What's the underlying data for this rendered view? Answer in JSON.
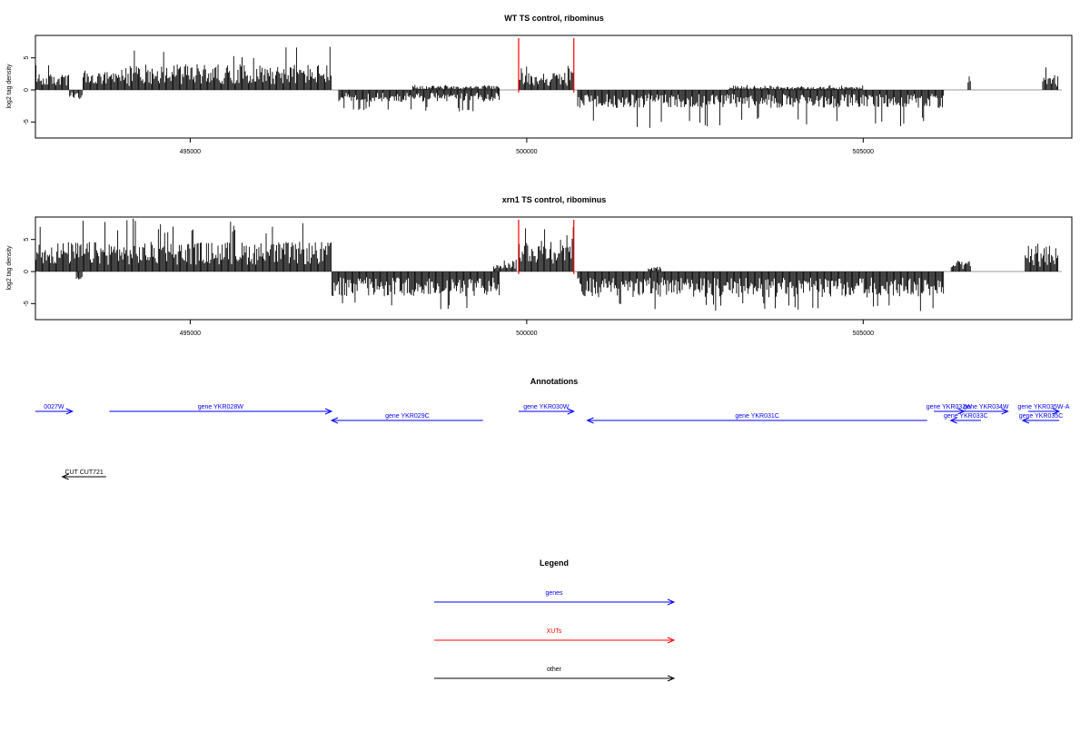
{
  "chart_data": [
    {
      "type": "bar",
      "title": "WT TS control, ribominus",
      "ylabel": "log2 tag density",
      "xlabel": "",
      "xlim": [
        492700,
        508100
      ],
      "ylim": [
        -7.5,
        8.5
      ],
      "yticks": [
        -5,
        0,
        5
      ],
      "ytick_labels": [
        "-5",
        "0",
        "5"
      ],
      "xticks": [
        495000,
        500000,
        505000
      ],
      "xtick_labels": [
        "495000",
        "500000",
        "505000"
      ],
      "highlight_lines": [
        499880,
        500700
      ],
      "highlight_color": "#ff0000",
      "bar_color": "#000000",
      "segments": [
        {
          "start": 492700,
          "end": 493200,
          "sign": 1,
          "level": 1.6,
          "peak": 4.5
        },
        {
          "start": 493200,
          "end": 493400,
          "sign": -1,
          "level": 0.8,
          "peak": 1.6
        },
        {
          "start": 493400,
          "end": 494100,
          "sign": 1,
          "level": 1.8,
          "peak": 3.5
        },
        {
          "start": 494100,
          "end": 497100,
          "sign": 1,
          "level": 2.6,
          "peak": 6.8
        },
        {
          "start": 497200,
          "end": 499600,
          "sign": -1,
          "level": 1.2,
          "peak": 3.5
        },
        {
          "start": 498300,
          "end": 499600,
          "sign": 1,
          "level": 0.4,
          "peak": 0.8
        },
        {
          "start": 499880,
          "end": 500700,
          "sign": 1,
          "level": 1.8,
          "peak": 3.8
        },
        {
          "start": 500750,
          "end": 506200,
          "sign": -1,
          "level": 1.8,
          "peak": 6.0
        },
        {
          "start": 503000,
          "end": 505000,
          "sign": 1,
          "level": 0.3,
          "peak": 0.8
        },
        {
          "start": 506550,
          "end": 506600,
          "sign": 1,
          "level": 1.5,
          "peak": 2.3
        },
        {
          "start": 507660,
          "end": 507900,
          "sign": 1,
          "level": 1.5,
          "peak": 4.3
        }
      ]
    },
    {
      "type": "bar",
      "title": "xrn1 TS control, ribominus",
      "ylabel": "log2 tag density",
      "xlabel": "",
      "xlim": [
        492700,
        508100
      ],
      "ylim": [
        -7.5,
        8.5
      ],
      "yticks": [
        -5,
        0,
        5
      ],
      "ytick_labels": [
        "-5",
        "0",
        "5"
      ],
      "xticks": [
        495000,
        500000,
        505000
      ],
      "xtick_labels": [
        "495000",
        "500000",
        "505000"
      ],
      "highlight_lines": [
        499880,
        500700
      ],
      "highlight_color": "#ff0000",
      "bar_color": "#000000",
      "segments": [
        {
          "start": 492700,
          "end": 497100,
          "sign": 1,
          "level": 3.0,
          "peak": 8.3
        },
        {
          "start": 493300,
          "end": 493400,
          "sign": -1,
          "level": 1.2,
          "peak": 2.0
        },
        {
          "start": 497100,
          "end": 499600,
          "sign": -1,
          "level": 2.5,
          "peak": 6.3
        },
        {
          "start": 499500,
          "end": 499850,
          "sign": 1,
          "level": 1.2,
          "peak": 2.5
        },
        {
          "start": 499880,
          "end": 500700,
          "sign": 1,
          "level": 3.5,
          "peak": 7.0
        },
        {
          "start": 500750,
          "end": 506200,
          "sign": -1,
          "level": 2.6,
          "peak": 6.8
        },
        {
          "start": 501800,
          "end": 502000,
          "sign": 1,
          "level": 0.5,
          "peak": 1.5
        },
        {
          "start": 506300,
          "end": 506600,
          "sign": 1,
          "level": 1.0,
          "peak": 1.7
        },
        {
          "start": 507400,
          "end": 507900,
          "sign": 1,
          "level": 2.0,
          "peak": 4.5
        }
      ]
    }
  ],
  "annotations": {
    "title": "Annotations",
    "xlim": [
      492700,
      508100
    ],
    "genes": [
      {
        "label": "0027W",
        "start": 492650,
        "end": 493250,
        "strand": "+",
        "row": 0,
        "color": "#0000ff"
      },
      {
        "label": "gene YKR028W",
        "start": 493800,
        "end": 497100,
        "strand": "+",
        "row": 0,
        "color": "#0000ff"
      },
      {
        "label": "gene YKR029C",
        "start": 497100,
        "end": 499350,
        "strand": "-",
        "row": 1,
        "color": "#0000ff"
      },
      {
        "label": "gene YKR030W",
        "start": 499880,
        "end": 500700,
        "strand": "+",
        "row": 0,
        "color": "#0000ff"
      },
      {
        "label": "gene YKR031C",
        "start": 500900,
        "end": 505950,
        "strand": "-",
        "row": 1,
        "color": "#0000ff"
      },
      {
        "label": "gene YKR032W",
        "start": 506050,
        "end": 506500,
        "strand": "+",
        "row": 0,
        "color": "#0000ff"
      },
      {
        "label": "gene YKR034W",
        "start": 506500,
        "end": 507150,
        "strand": "+",
        "row": 0,
        "color": "#0000ff"
      },
      {
        "label": "gene YKR033C",
        "start": 506300,
        "end": 506750,
        "strand": "-",
        "row": 1,
        "color": "#0000ff"
      },
      {
        "label": "gene YKR035W-A",
        "start": 507450,
        "end": 507970,
        "strand": "+",
        "row": 0,
        "color": "#0000ff"
      },
      {
        "label": "gene YKR035C",
        "start": 507370,
        "end": 507970,
        "strand": "-",
        "row": 1,
        "color": "#0000ff"
      },
      {
        "label": "CUT CUT721",
        "start": 493100,
        "end": 493750,
        "strand": "-",
        "row": 2,
        "color": "#000000"
      }
    ]
  },
  "legend": {
    "title": "Legend",
    "items": [
      {
        "label": "genes",
        "color": "#0000ff"
      },
      {
        "label": "XUTs",
        "color": "#ff0000"
      },
      {
        "label": "other",
        "color": "#000000"
      }
    ]
  }
}
